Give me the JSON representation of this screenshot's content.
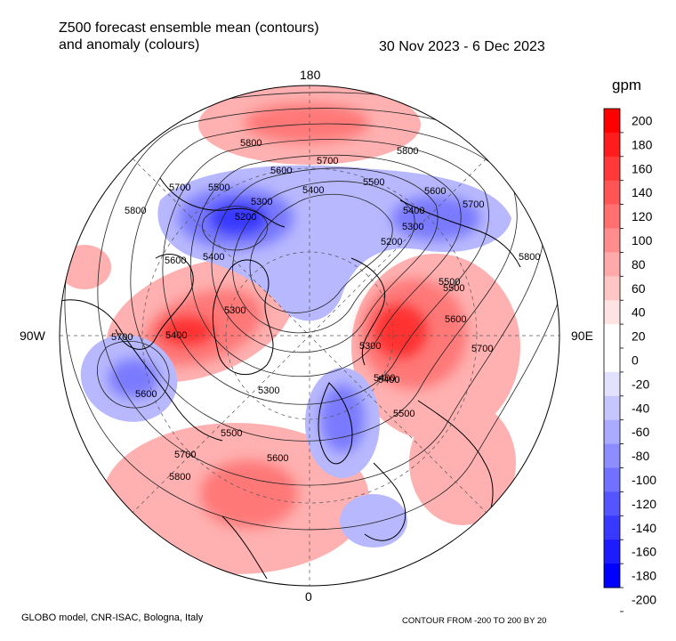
{
  "title": {
    "line1": "Z500 forecast ensemble mean (contours)",
    "line2": "and anomaly (colours)"
  },
  "date_range": "30 Nov 2023 - 6 Dec 2023",
  "colorbar": {
    "unit": "gpm",
    "labels": [
      "200",
      "180",
      "160",
      "140",
      "120",
      "100",
      "80",
      "60",
      "40",
      "20",
      "0",
      "-20",
      "-40",
      "-60",
      "-80",
      "-100",
      "-120",
      "-140",
      "-160",
      "-180",
      "-200"
    ],
    "class_colors": [
      "#ff0000",
      "#ff1c1c",
      "#ff3838",
      "#ff5555",
      "#ff7171",
      "#ff8d8d",
      "#ffaaaa",
      "#ffc6c6",
      "#ffe2e2",
      "#ffffff",
      "#ffffff",
      "#e2e2ff",
      "#c6c6ff",
      "#aaaaff",
      "#8d8dff",
      "#7171ff",
      "#5555ff",
      "#3838ff",
      "#1c1cff",
      "#0000ff"
    ]
  },
  "geo_labels": {
    "top": "180",
    "left": "90W",
    "right": "90E",
    "bottom": "0"
  },
  "contour_labels": [
    "5800",
    "5700",
    "5600",
    "5500",
    "5400",
    "5300",
    "5200",
    "5800",
    "5700",
    "5600",
    "5500",
    "5400",
    "5300",
    "5200",
    "5700",
    "5600",
    "5500",
    "5400",
    "5300",
    "5800",
    "5700",
    "5600",
    "5500",
    "5400",
    "5300",
    "5800",
    "5700",
    "5600",
    "5500",
    "5400",
    "5300",
    "5800",
    "5700",
    "5600",
    "5500",
    "5400"
  ],
  "footer": {
    "left": "GLOBO model, CNR-ISAC, Bologna, Italy",
    "right": "CONTOUR FROM -200 TO 200 BY 20"
  },
  "colors": {
    "positive": "#ff0000",
    "negative": "#0000ff"
  }
}
